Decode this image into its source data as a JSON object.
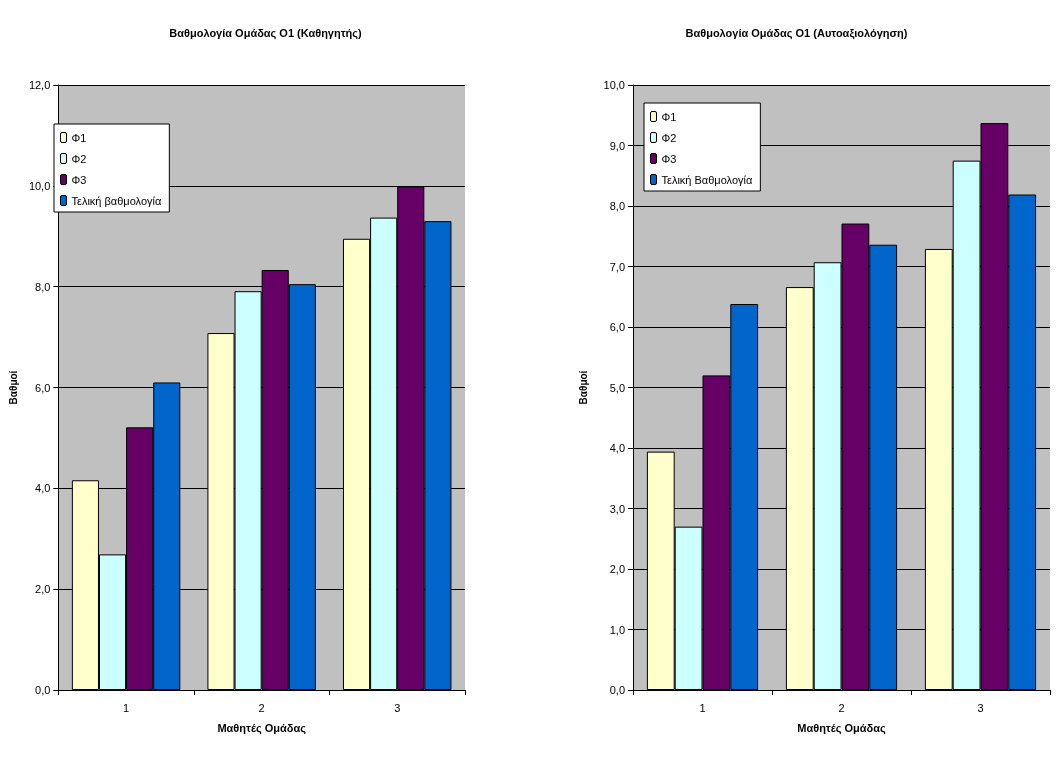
{
  "chart_data": [
    {
      "type": "bar",
      "title": "Βαθμολογία Ομάδας Ο1 (Καθηγητής)",
      "xlabel": "Μαθητές Ομάδας",
      "ylabel": "Βαθμοί",
      "categories": [
        "1",
        "2",
        "3"
      ],
      "series": [
        {
          "name": "Φ1",
          "color": "#ffffcc",
          "values": [
            4.16,
            7.08,
            8.95
          ]
        },
        {
          "name": "Φ2",
          "color": "#ccffff",
          "values": [
            2.69,
            7.91,
            9.37
          ]
        },
        {
          "name": "Φ3",
          "color": "#660066",
          "values": [
            5.21,
            8.33,
            9.99
          ]
        },
        {
          "name": "Τελική βαθμολογία",
          "color": "#0066cc",
          "values": [
            6.1,
            8.05,
            9.3
          ]
        }
      ],
      "ylim": [
        0,
        12
      ],
      "yticks": [
        {
          "value": 0,
          "label": "0,0"
        },
        {
          "value": 2,
          "label": "2,0"
        },
        {
          "value": 4,
          "label": "4,0"
        },
        {
          "value": 6,
          "label": "6,0"
        },
        {
          "value": 8,
          "label": "8,0"
        },
        {
          "value": 10,
          "label": "10,0"
        },
        {
          "value": 12,
          "label": "12,0"
        }
      ],
      "grid": "y",
      "legend": "top left"
    },
    {
      "type": "bar",
      "title": "Βαθμολογία Ομάδας Ο1 (Αυτοαξιολόγηση)",
      "xlabel": "Μαθητές Ομάδας",
      "ylabel": "Βαθμοί",
      "categories": [
        "1",
        "2",
        "3"
      ],
      "series": [
        {
          "name": "Φ1",
          "color": "#ffffcc",
          "values": [
            3.94,
            6.66,
            7.29
          ]
        },
        {
          "name": "Φ2",
          "color": "#ccffff",
          "values": [
            2.7,
            7.07,
            8.75
          ]
        },
        {
          "name": "Φ3",
          "color": "#660066",
          "values": [
            5.2,
            7.71,
            9.37
          ]
        },
        {
          "name": "Τελική Βαθμολογία",
          "color": "#0066cc",
          "values": [
            6.38,
            7.36,
            8.19
          ]
        }
      ],
      "ylim": [
        0,
        10
      ],
      "yticks": [
        {
          "value": 0,
          "label": "0,0"
        },
        {
          "value": 1,
          "label": "1,0"
        },
        {
          "value": 2,
          "label": "2,0"
        },
        {
          "value": 3,
          "label": "3,0"
        },
        {
          "value": 4,
          "label": "4,0"
        },
        {
          "value": 5,
          "label": "5,0"
        },
        {
          "value": 6,
          "label": "6,0"
        },
        {
          "value": 7,
          "label": "7,0"
        },
        {
          "value": 8,
          "label": "8,0"
        },
        {
          "value": 9,
          "label": "9,0"
        },
        {
          "value": 10,
          "label": "10,0"
        }
      ],
      "grid": "y",
      "legend": "top left"
    }
  ]
}
